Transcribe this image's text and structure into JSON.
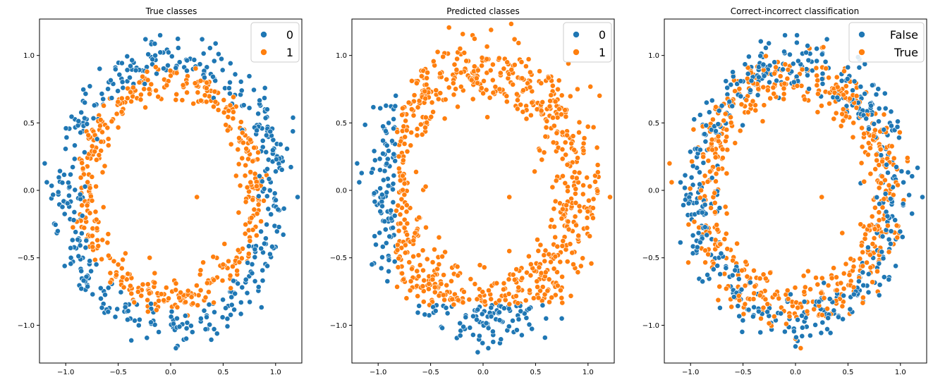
{
  "colors": {
    "blue": "#1f77b4",
    "orange": "#ff7f0e"
  },
  "chart_data": [
    {
      "type": "scatter",
      "title": "True classes",
      "xlabel": "",
      "ylabel": "",
      "xlim": [
        -1.25,
        1.25
      ],
      "ylim": [
        -1.28,
        1.27
      ],
      "xticks": [
        -1.0,
        -0.5,
        0.0,
        0.5,
        1.0
      ],
      "xtick_labels": [
        "−1.0",
        "−0.5",
        "0.0",
        "0.5",
        "1.0"
      ],
      "yticks": [
        -1.0,
        -0.5,
        0.0,
        0.5,
        1.0
      ],
      "ytick_labels": [
        "−1.0",
        "−0.5",
        "0.0",
        "0.5",
        "1.0"
      ],
      "grid": false,
      "legend": {
        "placement": "top-right",
        "entries": [
          {
            "label": "0",
            "color": "#1f77b4"
          },
          {
            "label": "1",
            "color": "#ff7f0e"
          }
        ]
      },
      "series": [
        {
          "color": "#1f77b4",
          "shape": "ring",
          "rx": 1.0,
          "ry": 1.0,
          "spread": 0.08,
          "count": 420,
          "seed": 11,
          "points": [
            [
              -1.2,
              0.2
            ],
            [
              -1.18,
              0.06
            ],
            [
              1.21,
              -0.05
            ],
            [
              0.05,
              -1.17
            ],
            [
              -0.1,
              1.15
            ],
            [
              0.3,
              1.12
            ],
            [
              -0.95,
              -0.5
            ],
            [
              0.9,
              0.6
            ]
          ]
        },
        {
          "color": "#ff7f0e",
          "shape": "ring",
          "rx": 0.8,
          "ry": 0.8,
          "spread": 0.08,
          "count": 420,
          "seed": 12,
          "points": [
            [
              0.25,
              -0.05
            ],
            [
              -0.2,
              -0.5
            ],
            [
              0.5,
              -0.55
            ],
            [
              -0.75,
              0.1
            ],
            [
              0.7,
              0.45
            ],
            [
              0.0,
              0.85
            ]
          ]
        }
      ]
    },
    {
      "type": "scatter",
      "title": "Predicted classes",
      "xlabel": "",
      "ylabel": "",
      "xlim": [
        -1.25,
        1.25
      ],
      "ylim": [
        -1.28,
        1.27
      ],
      "xticks": [
        -1.0,
        -0.5,
        0.0,
        0.5,
        1.0
      ],
      "xtick_labels": [
        "−1.0",
        "−0.5",
        "0.0",
        "0.5",
        "1.0"
      ],
      "yticks": [
        -1.0,
        -0.5,
        0.0,
        0.5,
        1.0
      ],
      "ytick_labels": [
        "−1.0",
        "−0.5",
        "0.0",
        "0.5",
        "1.0"
      ],
      "grid": false,
      "legend": {
        "placement": "top-right",
        "entries": [
          {
            "label": "0",
            "color": "#1f77b4"
          },
          {
            "label": "1",
            "color": "#ff7f0e"
          }
        ]
      },
      "series": [
        {
          "color": "#1f77b4",
          "shape": "ring-region",
          "region": "left-or-bottom",
          "x_threshold": -0.83,
          "y_threshold": -0.85,
          "rx": 0.9,
          "ry": 0.9,
          "spread": 0.14,
          "count": 900,
          "seed": 21,
          "points": [
            [
              -1.2,
              0.2
            ],
            [
              -1.18,
              0.06
            ],
            [
              0.05,
              -1.17
            ],
            [
              0.6,
              -0.95
            ],
            [
              0.75,
              -0.95
            ],
            [
              -0.9,
              0.5
            ],
            [
              -0.9,
              -0.6
            ]
          ]
        },
        {
          "color": "#ff7f0e",
          "shape": "ring-region",
          "region": "rest",
          "x_threshold": -0.83,
          "y_threshold": -0.85,
          "rx": 0.9,
          "ry": 0.9,
          "spread": 0.14,
          "count": 900,
          "seed": 21,
          "points": [
            [
              0.25,
              -0.05
            ],
            [
              0.25,
              -0.45
            ],
            [
              1.21,
              -0.05
            ],
            [
              1.1,
              0.1
            ],
            [
              -0.1,
              1.15
            ],
            [
              0.3,
              1.12
            ],
            [
              0.9,
              0.75
            ]
          ]
        }
      ]
    },
    {
      "type": "scatter",
      "title": "Correct-incorrect classification",
      "xlabel": "",
      "ylabel": "",
      "xlim": [
        -1.25,
        1.25
      ],
      "ylim": [
        -1.28,
        1.27
      ],
      "xticks": [
        -1.0,
        -0.5,
        0.0,
        0.5,
        1.0
      ],
      "xtick_labels": [
        "−1.0",
        "−0.5",
        "0.0",
        "0.5",
        "1.0"
      ],
      "yticks": [
        -1.0,
        -0.5,
        0.0,
        0.5,
        1.0
      ],
      "ytick_labels": [
        "−1.0",
        "−0.5",
        "0.0",
        "0.5",
        "1.0"
      ],
      "grid": false,
      "legend": {
        "placement": "top-right",
        "entries": [
          {
            "label": "False",
            "color": "#1f77b4"
          },
          {
            "label": "True",
            "color": "#ff7f0e"
          }
        ]
      },
      "series": [
        {
          "color": "#1f77b4",
          "shape": "ring-mixed",
          "rx": 0.95,
          "ry": 0.95,
          "spread": 0.1,
          "count": 450,
          "seed": 31,
          "points": [
            [
              1.21,
              -0.05
            ],
            [
              -0.1,
              1.15
            ],
            [
              0.3,
              1.12
            ],
            [
              0.8,
              -0.1
            ],
            [
              0.9,
              0.5
            ],
            [
              -0.2,
              0.95
            ]
          ]
        },
        {
          "color": "#ff7f0e",
          "shape": "ring-mixed",
          "rx": 0.85,
          "ry": 0.85,
          "spread": 0.12,
          "count": 550,
          "seed": 32,
          "points": [
            [
              0.25,
              -0.05
            ],
            [
              -1.2,
              0.2
            ],
            [
              -1.18,
              0.06
            ],
            [
              0.05,
              -1.17
            ],
            [
              -0.9,
              0.0
            ],
            [
              0.0,
              -1.1
            ]
          ]
        }
      ]
    }
  ]
}
